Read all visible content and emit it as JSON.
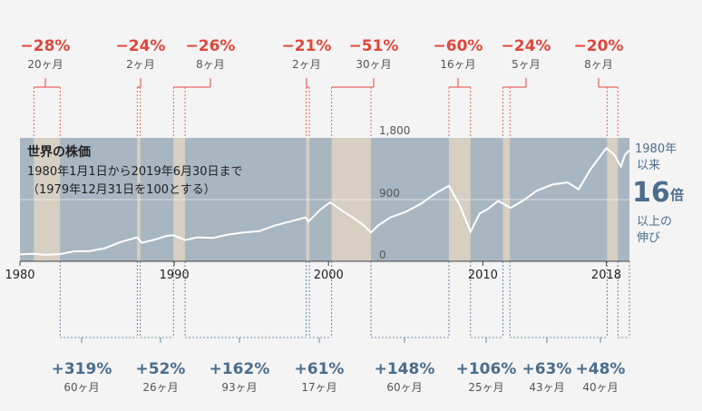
{
  "chart_data": {
    "type": "line",
    "title": "世界の株価",
    "subtitle_period": "1980年1月1日から2019年6月30日まで",
    "subtitle_base": "（1979年12月31日を100とする）",
    "x_range": [
      1980,
      2019.5
    ],
    "ylim": [
      0,
      1800
    ],
    "y_ticks": [
      {
        "value": 0,
        "label": "0"
      },
      {
        "value": 900,
        "label": "900"
      },
      {
        "value": 1800,
        "label": "1,800"
      }
    ],
    "x_ticks": [
      {
        "value": 1980,
        "label": "1980"
      },
      {
        "value": 1990,
        "label": "1990"
      },
      {
        "value": 2000,
        "label": "2000"
      },
      {
        "value": 2010,
        "label": "2010"
      },
      {
        "value": 2018,
        "label": "2018"
      }
    ],
    "series": [
      {
        "x": [
          1980,
          1980.8,
          1981.6,
          1982.6,
          1983.5,
          1984.5,
          1985.5,
          1986.5,
          1987.6,
          1987.9,
          1988.8,
          1989.5,
          1989.95,
          1990.7,
          1991.5,
          1992.5,
          1993.5,
          1994.5,
          1995.5,
          1996.5,
          1997.5,
          1998.5,
          1998.7,
          1999.5,
          2000.1,
          2001.0,
          2001.7,
          2002.3,
          2002.75,
          2003.2,
          2004.0,
          2005.0,
          2006.0,
          2007.0,
          2007.8,
          2008.5,
          2009.2,
          2009.8,
          2010.3,
          2011.0,
          2011.8,
          2012.5,
          2013.5,
          2014.5,
          2015.5,
          2016.2,
          2017.0,
          2018.0,
          2018.5,
          2018.95,
          2019.2,
          2019.5
        ],
        "values": [
          100,
          110,
          95,
          105,
          145,
          150,
          190,
          280,
          350,
          270,
          320,
          370,
          380,
          310,
          350,
          340,
          390,
          420,
          440,
          520,
          580,
          640,
          580,
          760,
          860,
          720,
          620,
          520,
          420,
          520,
          640,
          720,
          840,
          1000,
          1100,
          820,
          430,
          700,
          760,
          880,
          780,
          870,
          1030,
          1120,
          1150,
          1050,
          1350,
          1650,
          1560,
          1380,
          1550,
          1620
        ]
      }
    ],
    "declines": [
      {
        "start": 1980.9,
        "end": 1982.6,
        "pct": "−28%",
        "duration": "20ヶ月"
      },
      {
        "start": 1987.6,
        "end": 1987.8,
        "pct": "−24%",
        "duration": "2ヶ月"
      },
      {
        "start": 1989.95,
        "end": 1990.7,
        "pct": "−26%",
        "duration": "8ヶ月"
      },
      {
        "start": 1998.55,
        "end": 1998.75,
        "pct": "−21%",
        "duration": "2ヶ月"
      },
      {
        "start": 2000.2,
        "end": 2002.75,
        "pct": "−51%",
        "duration": "30ヶ月"
      },
      {
        "start": 2007.8,
        "end": 2009.2,
        "pct": "−60%",
        "duration": "16ヶ月"
      },
      {
        "start": 2011.3,
        "end": 2011.75,
        "pct": "−24%",
        "duration": "5ヶ月"
      },
      {
        "start": 2018.05,
        "end": 2018.75,
        "pct": "−20%",
        "duration": "8ヶ月"
      }
    ],
    "rises": [
      {
        "start": 1982.6,
        "end": 1987.6,
        "pct": "+319%",
        "duration": "60ヶ月"
      },
      {
        "start": 1987.8,
        "end": 1989.95,
        "pct": "+52%",
        "duration": "26ヶ月"
      },
      {
        "start": 1990.7,
        "end": 1998.55,
        "pct": "+162%",
        "duration": "93ヶ月"
      },
      {
        "start": 1998.75,
        "end": 2000.2,
        "pct": "+61%",
        "duration": "17ヶ月"
      },
      {
        "start": 2002.75,
        "end": 2007.8,
        "pct": "+148%",
        "duration": "60ヶ月"
      },
      {
        "start": 2009.2,
        "end": 2011.3,
        "pct": "+106%",
        "duration": "25ヶ月"
      },
      {
        "start": 2011.75,
        "end": 2018.05,
        "pct": "+63%",
        "duration": "43ヶ月"
      },
      {
        "start": 2018.75,
        "end": 2019.5,
        "pct": "+48%",
        "duration": "40ヶ月"
      }
    ],
    "growth_note": {
      "line1": "1980年",
      "line2": "以来",
      "number": "16",
      "unit": "倍",
      "line3": "以上の",
      "line4": "伸び"
    },
    "colors": {
      "plot_bg": "#a8b6c2",
      "band": "#d6cfc2",
      "line": "#ffffff",
      "decline": "#e0473a",
      "rise": "#4a6d8c"
    }
  }
}
